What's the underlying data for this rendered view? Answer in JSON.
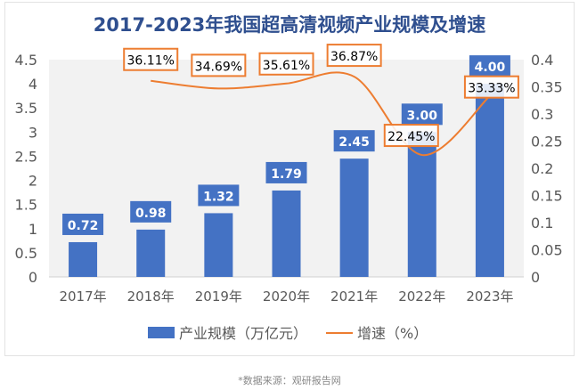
{
  "chart_data": {
    "type": "bar+line",
    "title": "2017-2023年我国超高清视频产业规模及增速",
    "categories": [
      "2017年",
      "2018年",
      "2019年",
      "2020年",
      "2021年",
      "2022年",
      "2023年"
    ],
    "series": [
      {
        "name": "产业规模（万亿元）",
        "type": "bar",
        "axis": "left",
        "color": "#4472c4",
        "values": [
          0.72,
          0.98,
          1.32,
          1.79,
          2.45,
          3.0,
          4.0
        ],
        "labels": [
          "0.72",
          "0.98",
          "1.32",
          "1.79",
          "2.45",
          "3.00",
          "4.00"
        ]
      },
      {
        "name": "增速（%）",
        "type": "line",
        "axis": "right",
        "color": "#ed7d31",
        "values": [
          null,
          0.3611,
          0.3469,
          0.3561,
          0.3687,
          0.2245,
          0.3333
        ],
        "labels": [
          "",
          "36.11%",
          "34.69%",
          "35.61%",
          "36.87%",
          "22.45%",
          "33.33%"
        ]
      }
    ],
    "y_left": {
      "range": [
        0,
        4.5
      ],
      "ticks": [
        "0",
        "0.5",
        "1",
        "1.5",
        "2",
        "2.5",
        "3",
        "3.5",
        "4",
        "4.5"
      ]
    },
    "y_right": {
      "range": [
        0,
        0.4
      ],
      "ticks": [
        "0",
        "0.05",
        "0.1",
        "0.15",
        "0.2",
        "0.25",
        "0.3",
        "0.35",
        "0.4"
      ]
    },
    "grid": false,
    "plot_background": "#f2f2f2",
    "legend": "bottom"
  },
  "source": "*数据来源：观研报告网"
}
